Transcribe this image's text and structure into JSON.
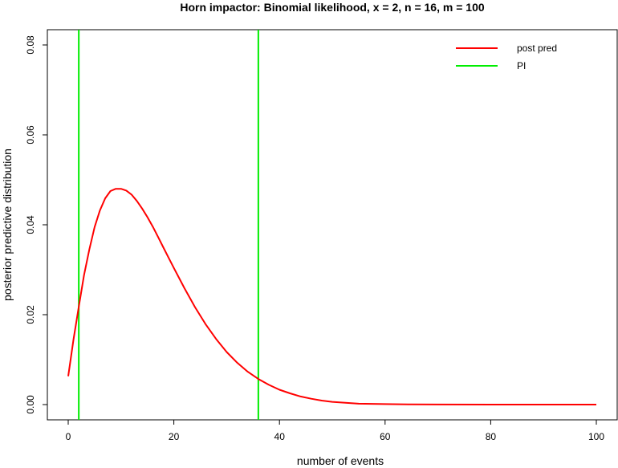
{
  "chart_data": {
    "type": "line",
    "title": "Horn impactor: Binomial likelihood, x = 2, n = 16, m = 100",
    "xlabel": "number of events",
    "ylabel": "posterior predictive distribution",
    "xlim": [
      0,
      100
    ],
    "ylim": [
      0,
      0.08
    ],
    "x_ticks": [
      "0",
      "20",
      "40",
      "60",
      "80",
      "100"
    ],
    "y_ticks": [
      "0.00",
      "0.02",
      "0.04",
      "0.06",
      "0.08"
    ],
    "grid": false,
    "legend_position": "top-right",
    "series": [
      {
        "name": "post pred",
        "color": "#ff0000",
        "x": [
          0,
          1,
          2,
          3,
          4,
          5,
          6,
          7,
          8,
          9,
          10,
          11,
          12,
          13,
          14,
          15,
          16,
          17,
          18,
          19,
          20,
          22,
          24,
          26,
          28,
          30,
          32,
          34,
          36,
          38,
          40,
          42,
          44,
          46,
          48,
          50,
          55,
          60,
          65,
          70,
          80,
          90,
          100
        ],
        "values": [
          0.0063,
          0.0145,
          0.0218,
          0.0288,
          0.0345,
          0.0395,
          0.0432,
          0.0459,
          0.0475,
          0.048,
          0.048,
          0.0476,
          0.0467,
          0.0453,
          0.0436,
          0.0417,
          0.0396,
          0.0373,
          0.035,
          0.0327,
          0.0304,
          0.0259,
          0.0217,
          0.0179,
          0.0146,
          0.0117,
          0.0093,
          0.0073,
          0.0057,
          0.0044,
          0.0033,
          0.0025,
          0.0018,
          0.0013,
          0.0009,
          0.0006,
          0.0002,
          0.0001,
          3e-05,
          1e-05,
          0,
          0,
          0
        ]
      }
    ],
    "reference_lines": {
      "name": "PI",
      "color": "#00ee00",
      "x": [
        2,
        36
      ]
    }
  }
}
